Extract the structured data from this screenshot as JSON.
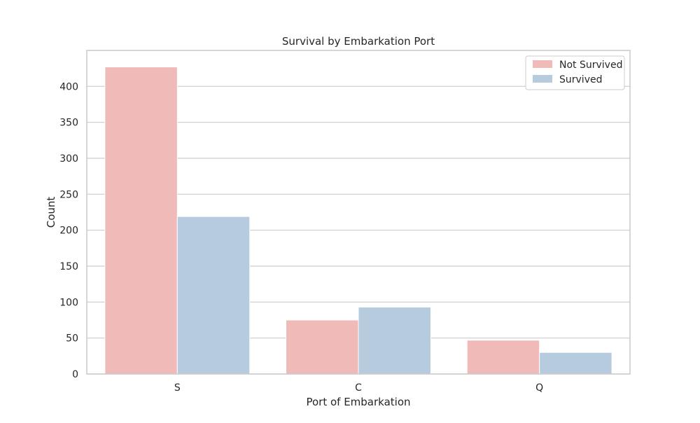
{
  "chart_data": {
    "type": "bar",
    "title": "Survival by Embarkation Port",
    "xlabel": "Port of Embarkation",
    "ylabel": "Count",
    "categories": [
      "S",
      "C",
      "Q"
    ],
    "series": [
      {
        "name": "Not Survived",
        "values": [
          427,
          75,
          47
        ],
        "color": "#f0bab8"
      },
      {
        "name": "Survived",
        "values": [
          219,
          93,
          30
        ],
        "color": "#b7cbdf"
      }
    ],
    "ylim": [
      0,
      450
    ],
    "yticks": [
      0,
      50,
      100,
      150,
      200,
      250,
      300,
      350,
      400
    ],
    "ytick_labels": [
      "0",
      "50",
      "100",
      "150",
      "200",
      "250",
      "300",
      "350",
      "400"
    ],
    "grid": true,
    "legend_position": "top-right",
    "axes_edge_color": "#cccccc",
    "grid_color": "#cccccc"
  }
}
